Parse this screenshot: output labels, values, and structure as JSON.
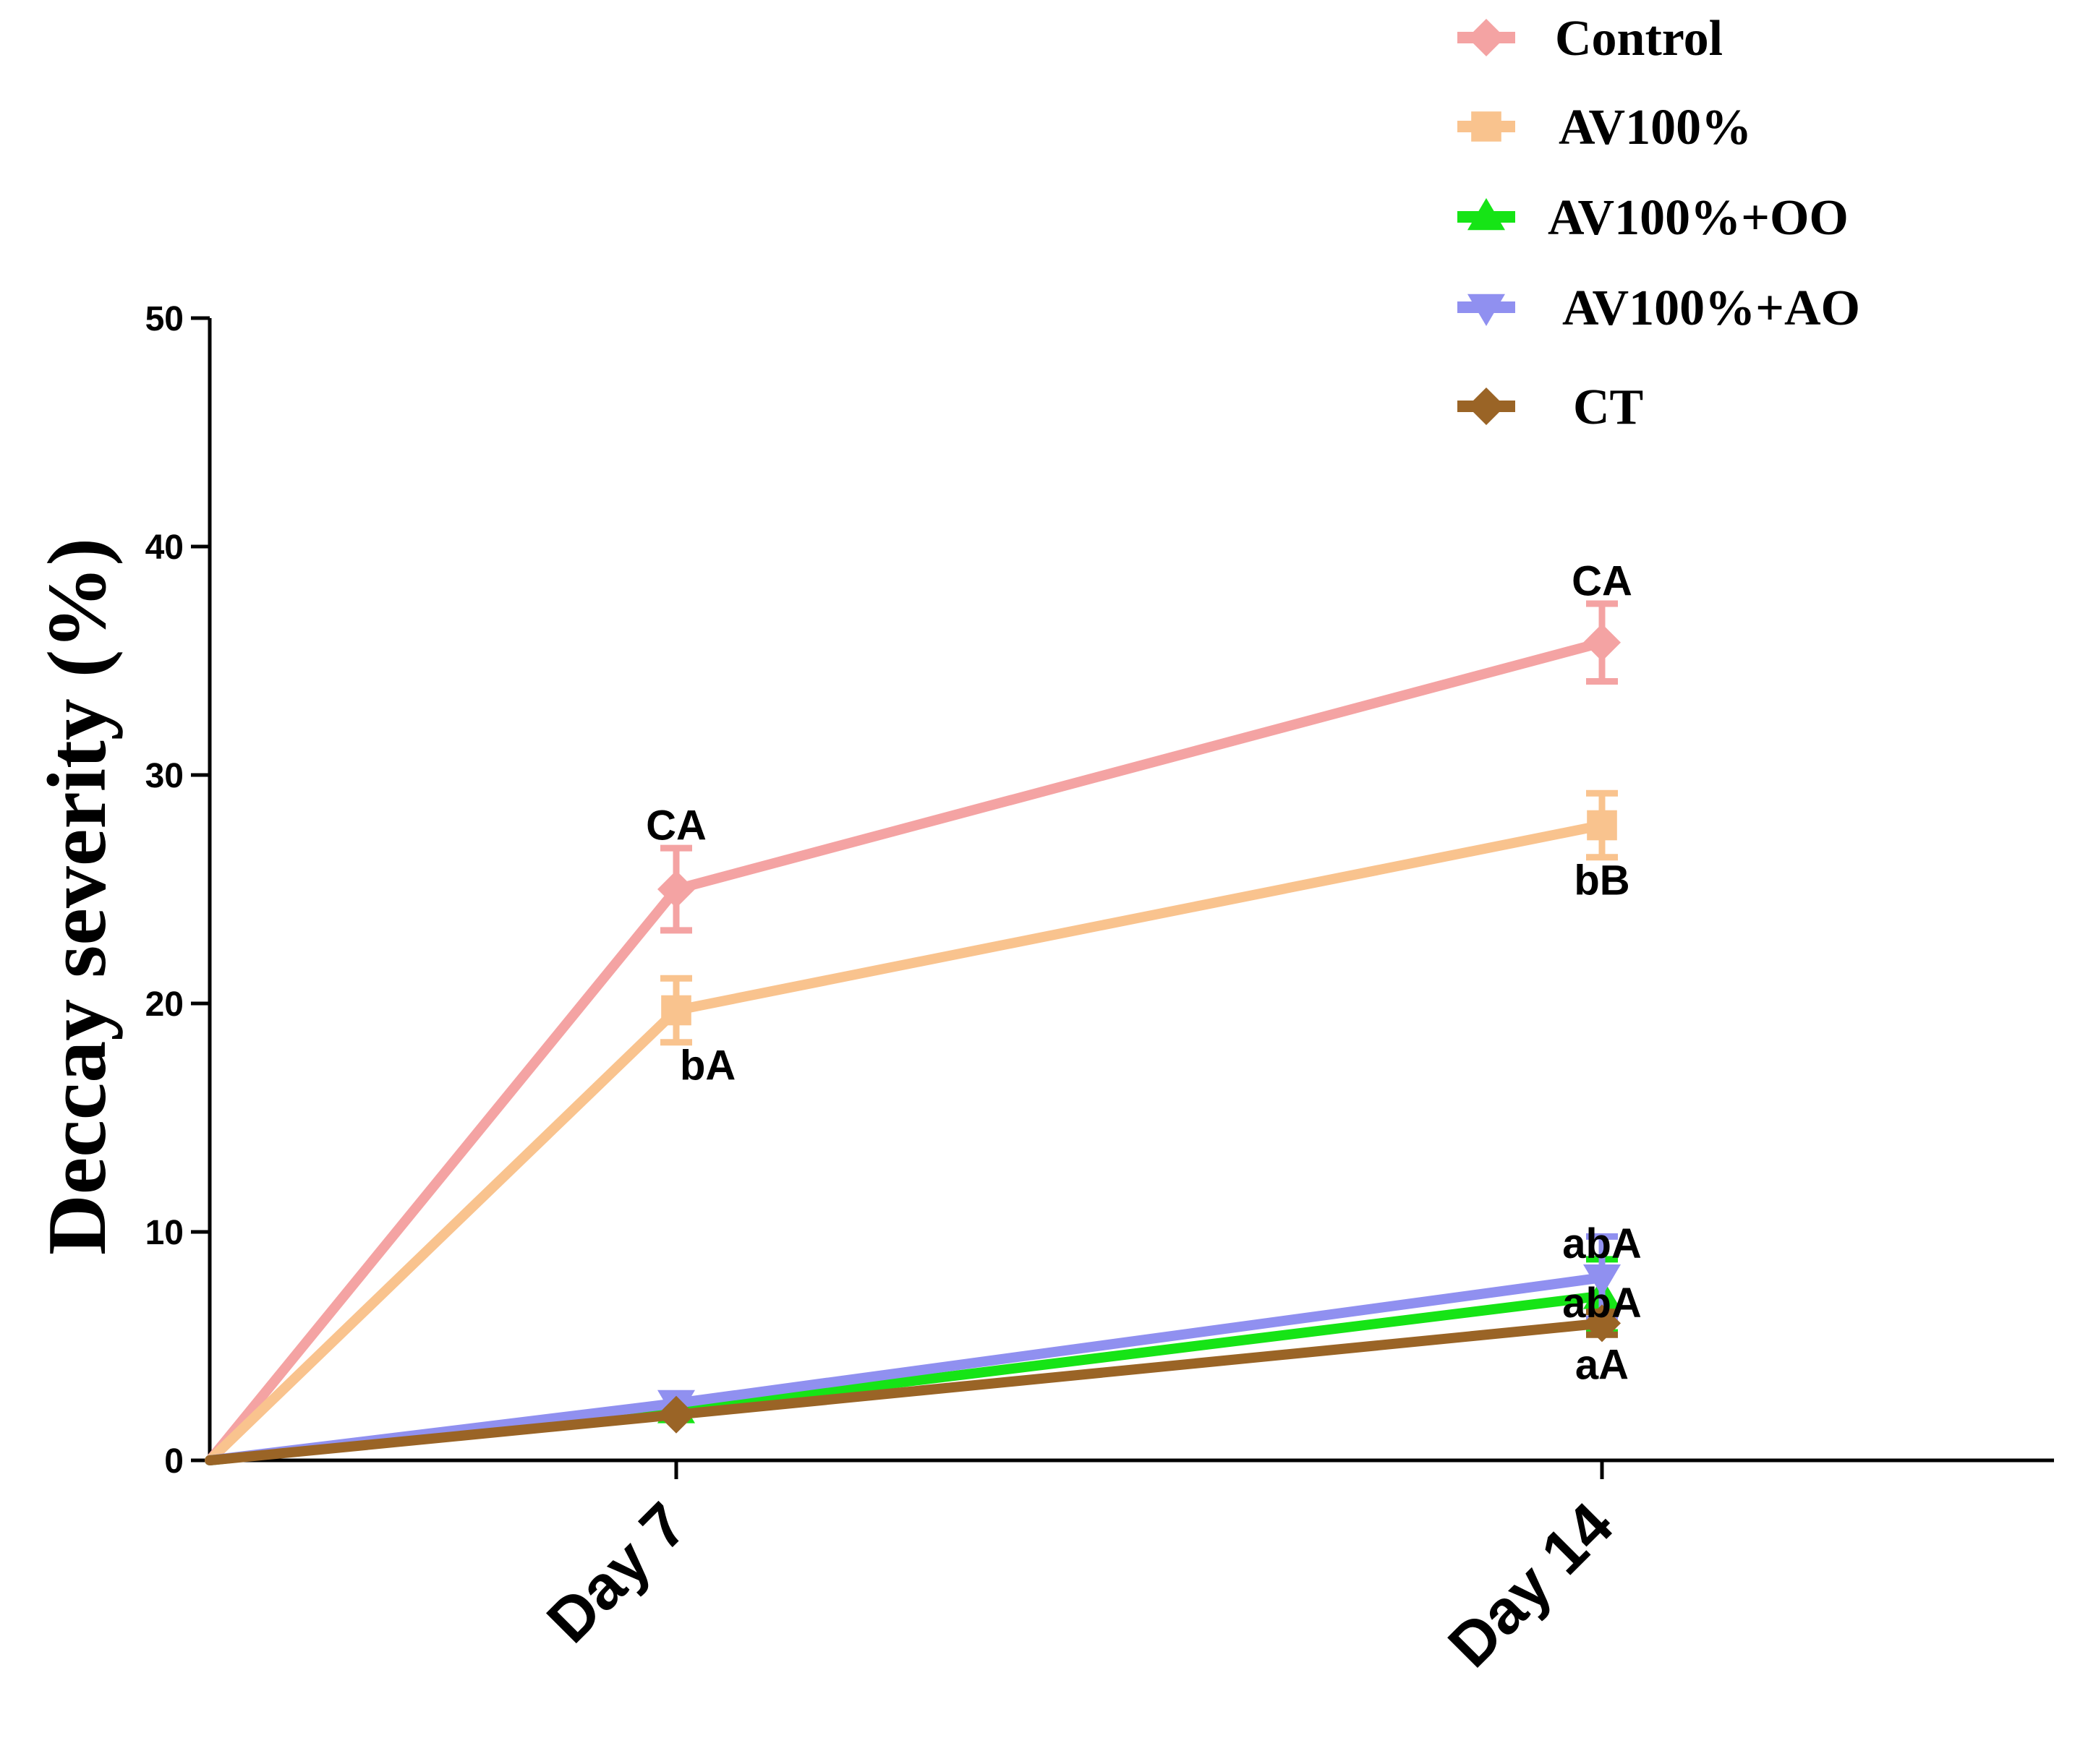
{
  "chart_data": {
    "type": "line",
    "title": "",
    "xlabel": "",
    "ylabel": "Deccay severity (%)",
    "ylim": [
      0,
      50
    ],
    "yticks": [
      0,
      10,
      20,
      30,
      40,
      50
    ],
    "x": [
      0,
      7,
      14
    ],
    "categories": [
      "Day 7",
      "Day 14"
    ],
    "legend_position": "top-right",
    "series": [
      {
        "name": "Control",
        "color": "#f4a3a3",
        "marker": "diamond",
        "values": [
          0,
          25,
          35.8
        ],
        "errors": [
          0,
          1.8,
          1.7
        ]
      },
      {
        "name": "AV100%",
        "color": "#f9c38e",
        "marker": "square",
        "values": [
          0,
          19.7,
          27.8
        ],
        "errors": [
          0,
          1.4,
          1.4
        ]
      },
      {
        "name": "AV100%+OO",
        "color": "#16e416",
        "marker": "triangle-up",
        "values": [
          0,
          2.2,
          7.2
        ],
        "errors": [
          0,
          0,
          1.6
        ]
      },
      {
        "name": "AV100%+AO",
        "color": "#9090f0",
        "marker": "triangle-down",
        "values": [
          0,
          2.5,
          8.0
        ],
        "errors": [
          0,
          0,
          1.8
        ]
      },
      {
        "name": "CT",
        "color": "#9a6426",
        "marker": "diamond",
        "values": [
          0,
          2.0,
          6.0
        ],
        "errors": [
          0,
          0,
          0.5
        ]
      }
    ],
    "annotations": [
      {
        "text": "CA",
        "x": 7,
        "y": 27.8,
        "anchor": "middle"
      },
      {
        "text": "bA",
        "x": 7,
        "y": 17.3,
        "anchor": "start"
      },
      {
        "text": "CA",
        "x": 14,
        "y": 38.5,
        "anchor": "middle"
      },
      {
        "text": "bB",
        "x": 14,
        "y": 25.4,
        "anchor": "middle"
      },
      {
        "text": "abA",
        "x": 14,
        "y": 9.5,
        "anchor": "middle"
      },
      {
        "text": "abA",
        "x": 14,
        "y": 6.9,
        "anchor": "middle"
      },
      {
        "text": "aA",
        "x": 14,
        "y": 4.2,
        "anchor": "middle"
      }
    ]
  }
}
